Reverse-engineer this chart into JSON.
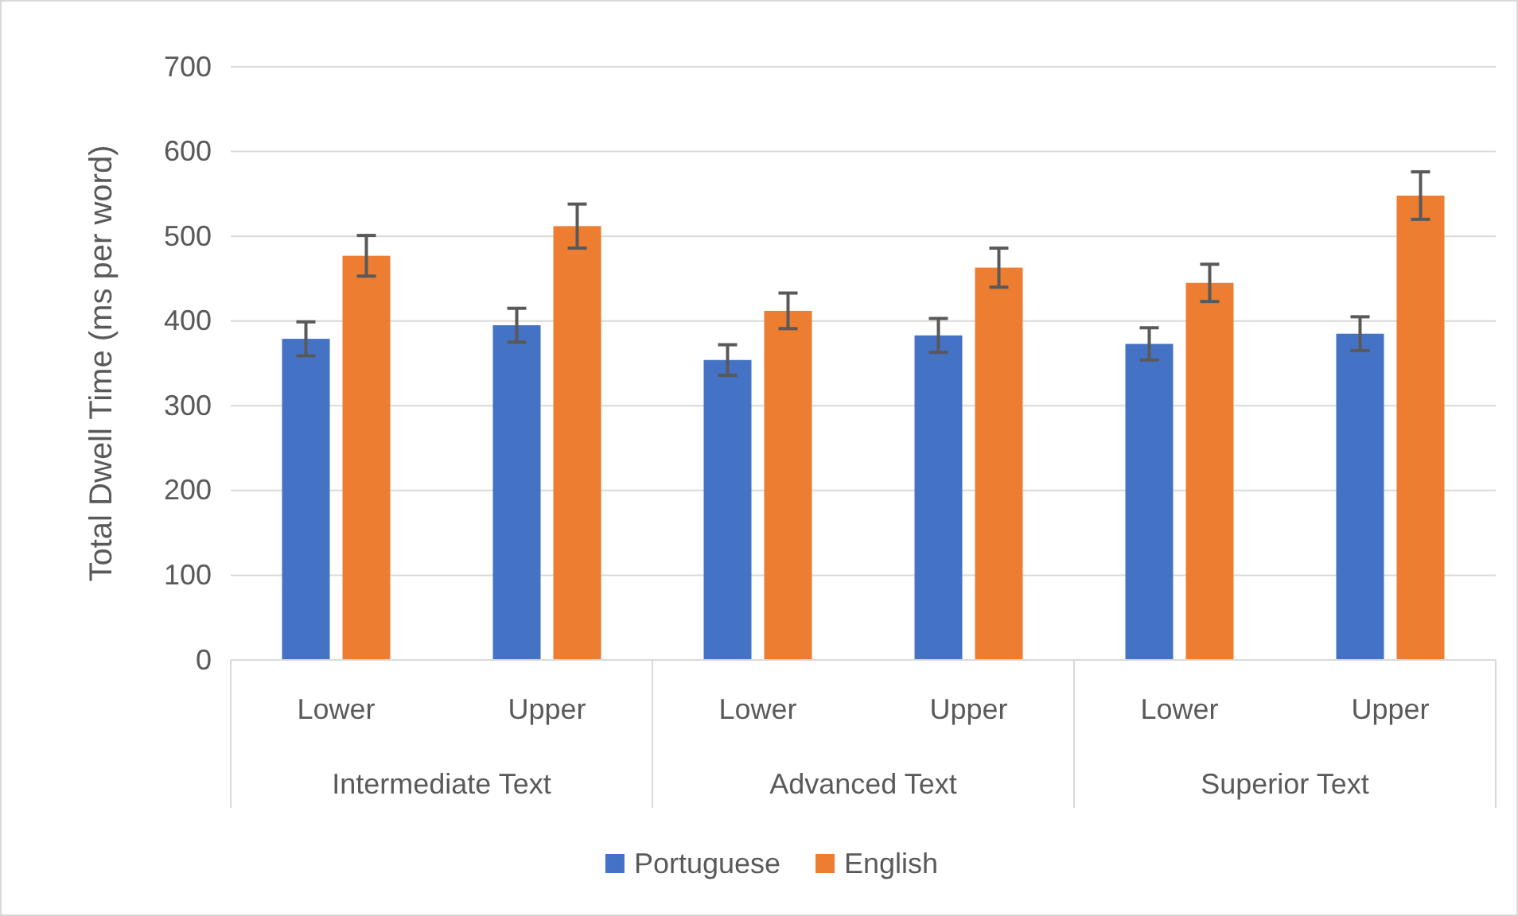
{
  "chart_data": {
    "type": "bar",
    "ylabel": "Total Dwell Time (ms per word)",
    "categories": [
      "Lower",
      "Upper",
      "Lower",
      "Upper",
      "Lower",
      "Upper"
    ],
    "annotations": [
      "Intermediate Text",
      "Advanced Text",
      "Superior Text"
    ],
    "series": [
      {
        "name": "Portuguese",
        "color": "#4472c4",
        "values": [
          379,
          395,
          354,
          383,
          373,
          385
        ],
        "errors": [
          20,
          20,
          18,
          20,
          19,
          20
        ]
      },
      {
        "name": "English",
        "color": "#ed7d31",
        "values": [
          477,
          512,
          412,
          463,
          445,
          548
        ],
        "errors": [
          24,
          26,
          21,
          23,
          22,
          28
        ]
      }
    ],
    "ylim": [
      0,
      700
    ],
    "yticks": [
      0,
      100,
      200,
      300,
      400,
      500,
      600,
      700
    ],
    "grid": "y",
    "legend": "bottom"
  }
}
